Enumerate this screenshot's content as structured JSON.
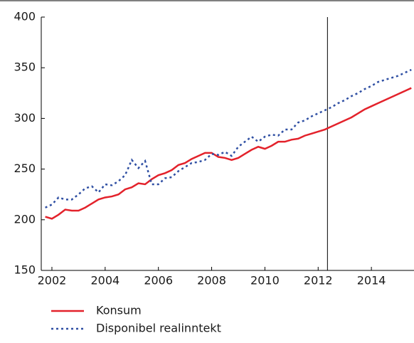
{
  "chart_data": {
    "type": "line",
    "x": [
      2001.75,
      2002,
      2002.25,
      2002.5,
      2002.75,
      2003,
      2003.25,
      2003.5,
      2003.75,
      2004,
      2004.25,
      2004.5,
      2004.75,
      2005,
      2005.25,
      2005.5,
      2005.75,
      2006,
      2006.25,
      2006.5,
      2006.75,
      2007,
      2007.25,
      2007.5,
      2007.75,
      2008,
      2008.25,
      2008.5,
      2008.75,
      2009,
      2009.25,
      2009.5,
      2009.75,
      2010,
      2010.25,
      2010.5,
      2010.75,
      2011,
      2011.25,
      2011.5,
      2011.75,
      2012,
      2012.25,
      2012.5,
      2012.75,
      2013,
      2013.25,
      2013.5,
      2013.75,
      2014,
      2014.25,
      2014.5,
      2014.75,
      2015,
      2015.25,
      2015.5
    ],
    "series": [
      {
        "name": "Konsum",
        "color": "#e3222b",
        "dash": "solid",
        "values": [
          203,
          201,
          205,
          210,
          209,
          209,
          212,
          216,
          220,
          222,
          223,
          225,
          230,
          232,
          236,
          235,
          240,
          244,
          246,
          249,
          254,
          256,
          260,
          263,
          266,
          266,
          262,
          261,
          259,
          261,
          265,
          269,
          272,
          270,
          273,
          277,
          277,
          279,
          280,
          283,
          285,
          287,
          289,
          292,
          295,
          298,
          301,
          305,
          309,
          312,
          315,
          318,
          321,
          324,
          327,
          330
        ]
      },
      {
        "name": "Disponibel realinntekt",
        "color": "#2f4fa3",
        "dash": "dotted",
        "values": [
          212,
          215,
          222,
          220,
          220,
          225,
          231,
          233,
          227,
          235,
          234,
          238,
          244,
          259,
          251,
          258,
          235,
          235,
          241,
          242,
          248,
          252,
          256,
          257,
          259,
          265,
          264,
          267,
          263,
          272,
          277,
          282,
          277,
          282,
          284,
          283,
          289,
          289,
          296,
          298,
          302,
          305,
          308,
          311,
          315,
          318,
          322,
          325,
          329,
          332,
          336,
          338,
          340,
          342,
          345,
          348
        ]
      }
    ],
    "xlim": [
      2001.6,
      2015.6
    ],
    "xticks": [
      2002,
      2004,
      2006,
      2008,
      2010,
      2012,
      2014
    ],
    "ylim": [
      150,
      400
    ],
    "yticks": [
      150,
      200,
      250,
      300,
      350,
      400
    ],
    "vline_x": 2012.35,
    "grid": false,
    "legend": "bottom-left"
  }
}
